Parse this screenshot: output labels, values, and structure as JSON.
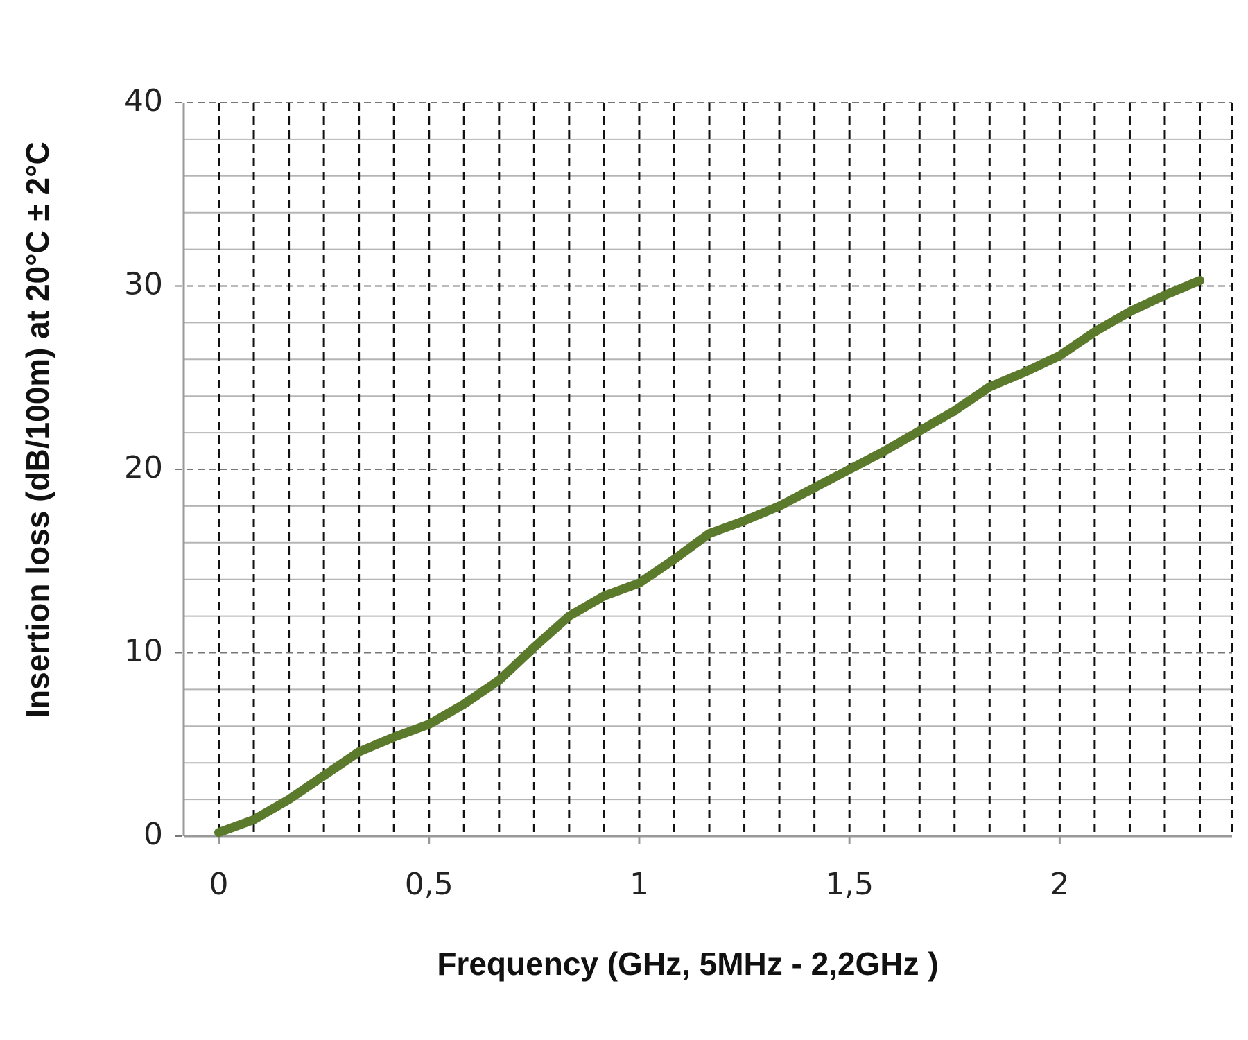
{
  "chart_data": {
    "type": "line",
    "xlabel": "Frequency (GHz, 5MHz - 2,2GHz )",
    "ylabel": "Insertion loss (dB/100m) at 20°C ± 2°C",
    "x": [
      0,
      0.0833,
      0.1667,
      0.25,
      0.3333,
      0.4167,
      0.5,
      0.5833,
      0.6667,
      0.75,
      0.8333,
      0.9167,
      1,
      1.0833,
      1.1667,
      1.25,
      1.3333,
      1.4167,
      1.5,
      1.5833,
      1.6667,
      1.75,
      1.8333,
      1.9167,
      2,
      2.0833,
      2.1667,
      2.25,
      2.3333
    ],
    "values": [
      0.2,
      0.9,
      2.0,
      3.3,
      4.6,
      5.4,
      6.1,
      7.2,
      8.5,
      10.3,
      12.0,
      13.1,
      13.8,
      15.1,
      16.5,
      17.2,
      18.0,
      19.0,
      20.0,
      21.0,
      22.1,
      23.2,
      24.5,
      25.3,
      26.2,
      27.5,
      28.6,
      29.5,
      30.3
    ],
    "color": "#5b7a2b",
    "xlim": [
      -0.0833,
      2.41
    ],
    "xticks": [
      0,
      {
        "value": 0.5,
        "label": "0,5"
      },
      1,
      {
        "value": 1.5,
        "label": "1,5"
      },
      2
    ],
    "ylim": [
      0,
      40
    ],
    "yticks": [
      0,
      10,
      20,
      30,
      40
    ],
    "yminorticks": [
      2,
      4,
      6,
      8,
      12,
      14,
      16,
      18,
      22,
      24,
      26,
      28,
      32,
      34,
      36,
      38
    ],
    "grid": true
  }
}
